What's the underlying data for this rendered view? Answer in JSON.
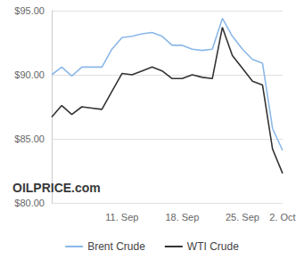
{
  "chart_data": {
    "type": "line",
    "categories": [
      null,
      null,
      null,
      null,
      null,
      null,
      null,
      "11. Sep",
      null,
      null,
      null,
      null,
      null,
      "18. Sep",
      null,
      null,
      null,
      null,
      null,
      "25. Sep",
      null,
      null,
      null,
      "2. Oct"
    ],
    "series": [
      {
        "name": "Brent Crude",
        "color": "#8bb8e8",
        "values": [
          90.0,
          90.6,
          89.9,
          90.6,
          90.6,
          90.6,
          92.0,
          92.9,
          93.0,
          93.2,
          93.3,
          93.0,
          92.3,
          92.3,
          92.0,
          91.9,
          92.0,
          94.4,
          93.0,
          92.0,
          91.2,
          90.9,
          85.8,
          84.1
        ]
      },
      {
        "name": "WTI Crude",
        "color": "#333333",
        "values": [
          86.7,
          87.6,
          86.9,
          87.5,
          87.4,
          87.3,
          88.7,
          90.1,
          90.0,
          90.3,
          90.6,
          90.3,
          89.7,
          89.7,
          90.0,
          89.8,
          89.7,
          93.7,
          91.5,
          90.5,
          89.5,
          89.2,
          84.2,
          82.3
        ]
      }
    ],
    "ylim": [
      80,
      95
    ],
    "yticks": [
      {
        "value": 80,
        "label": "$80.00"
      },
      {
        "value": 85,
        "label": "$85.00"
      },
      {
        "value": 90,
        "label": "$90.00"
      },
      {
        "value": 95,
        "label": "$95.00"
      }
    ],
    "grid": true,
    "legend": "bottom",
    "annotations": [
      "OILPRICE.com"
    ]
  }
}
